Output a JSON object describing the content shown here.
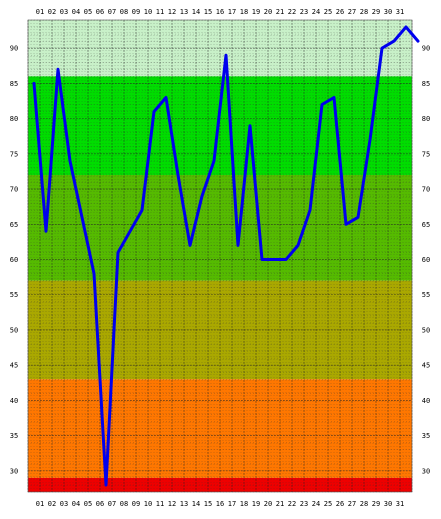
{
  "chart_data": {
    "type": "line",
    "title": "",
    "xlabel": "",
    "ylabel": "",
    "x": [
      "01",
      "02",
      "03",
      "04",
      "05",
      "06",
      "07",
      "08",
      "09",
      "10",
      "11",
      "12",
      "13",
      "14",
      "15",
      "16",
      "17",
      "18",
      "19",
      "20",
      "21",
      "22",
      "23",
      "24",
      "25",
      "26",
      "27",
      "28",
      "29",
      "30",
      "31"
    ],
    "y_ticks": [
      30,
      35,
      40,
      45,
      50,
      55,
      60,
      65,
      70,
      75,
      80,
      85,
      90
    ],
    "ylim": [
      27,
      94
    ],
    "grid": true,
    "series": [
      {
        "color": "#0000ee",
        "values": [
          {
            "x": 0.5,
            "y": 85
          },
          {
            "x": 1.5,
            "y": 64
          },
          {
            "x": 2.5,
            "y": 87
          },
          {
            "x": 3.5,
            "y": 74
          },
          {
            "x": 4.5,
            "y": 66
          },
          {
            "x": 5.5,
            "y": 58
          },
          {
            "x": 6.5,
            "y": 28
          },
          {
            "x": 7.5,
            "y": 61
          },
          {
            "x": 9.5,
            "y": 67
          },
          {
            "x": 10.5,
            "y": 81
          },
          {
            "x": 11.5,
            "y": 83
          },
          {
            "x": 12.5,
            "y": 72
          },
          {
            "x": 13.5,
            "y": 62
          },
          {
            "x": 14.5,
            "y": 69
          },
          {
            "x": 15.5,
            "y": 74
          },
          {
            "x": 16.5,
            "y": 89
          },
          {
            "x": 17.5,
            "y": 62
          },
          {
            "x": 18.5,
            "y": 79
          },
          {
            "x": 19.5,
            "y": 60
          },
          {
            "x": 21.5,
            "y": 60
          },
          {
            "x": 22.5,
            "y": 62
          },
          {
            "x": 23.5,
            "y": 67
          },
          {
            "x": 24.5,
            "y": 82
          },
          {
            "x": 25.5,
            "y": 83
          },
          {
            "x": 26.5,
            "y": 65
          },
          {
            "x": 27.5,
            "y": 66
          },
          {
            "x": 28.5,
            "y": 77
          },
          {
            "x": 29.5,
            "y": 90
          },
          {
            "x": 30.5,
            "y": 91
          },
          {
            "x": 31.5,
            "y": 93
          },
          {
            "x": 32.5,
            "y": 91
          }
        ]
      }
    ],
    "bands": [
      {
        "from": 86,
        "to": 94,
        "color": "#c8f0c8"
      },
      {
        "from": 72,
        "to": 86,
        "color": "#00dd00"
      },
      {
        "from": 57,
        "to": 72,
        "color": "#55bb00"
      },
      {
        "from": 43,
        "to": 57,
        "color": "#aaa800"
      },
      {
        "from": 29,
        "to": 43,
        "color": "#ff7700"
      },
      {
        "from": 27,
        "to": 29,
        "color": "#ee0000"
      }
    ]
  }
}
